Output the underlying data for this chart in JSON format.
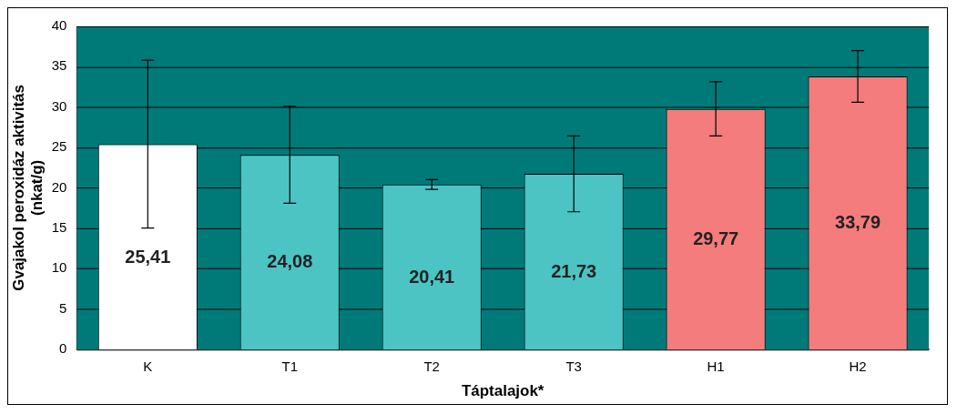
{
  "chart_data": {
    "type": "bar",
    "xlabel": "Táptalajok*",
    "ylabel": "Gvajakol peroxidáz aktivitás\n(nkat/g)",
    "categories": [
      "K",
      "T1",
      "T2",
      "T3",
      "H1",
      "H2"
    ],
    "values": [
      25.41,
      24.08,
      20.41,
      21.73,
      29.77,
      33.79
    ],
    "value_labels": [
      "25,41",
      "24,08",
      "20,41",
      "21,73",
      "29,77",
      "33,79"
    ],
    "colors": [
      "#ffffff",
      "#4cc4c4",
      "#4cc4c4",
      "#4cc4c4",
      "#f47c7c",
      "#f47c7c"
    ],
    "errors": [
      10.4,
      6,
      0.6,
      4.7,
      3.35,
      3.2
    ],
    "ylim": [
      0,
      40
    ],
    "yticks": [
      0,
      5,
      10,
      15,
      20,
      25,
      30,
      35,
      40
    ],
    "grid": "y",
    "legend": false
  }
}
